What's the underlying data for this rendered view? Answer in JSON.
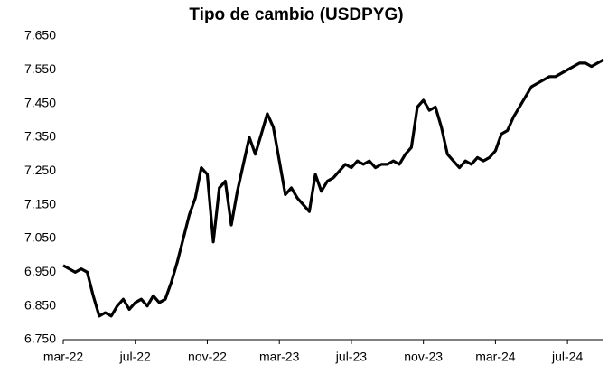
{
  "chart_data": {
    "type": "line",
    "title": "Tipo de cambio (USDPYG)",
    "categories": [
      "mar-22",
      null,
      null,
      null,
      null,
      null,
      null,
      null,
      null,
      null,
      null,
      null,
      "jul-22",
      null,
      null,
      null,
      null,
      null,
      null,
      null,
      null,
      null,
      null,
      null,
      "nov-22",
      null,
      null,
      null,
      null,
      null,
      null,
      null,
      null,
      null,
      null,
      null,
      "mar-23",
      null,
      null,
      null,
      null,
      null,
      null,
      null,
      null,
      null,
      null,
      null,
      "jul-23",
      null,
      null,
      null,
      null,
      null,
      null,
      null,
      null,
      null,
      null,
      null,
      "nov-23",
      null,
      null,
      null,
      null,
      null,
      null,
      null,
      null,
      null,
      null,
      null,
      "mar-24",
      null,
      null,
      null,
      null,
      null,
      null,
      null,
      null,
      null,
      null,
      null,
      "jul-24",
      null,
      null,
      null,
      null,
      null,
      null
    ],
    "series": [
      {
        "color": "#000000",
        "values": [
          6.97,
          6.96,
          6.95,
          6.96,
          6.95,
          6.88,
          6.82,
          6.83,
          6.82,
          6.85,
          6.87,
          6.84,
          6.86,
          6.87,
          6.85,
          6.88,
          6.86,
          6.87,
          6.92,
          6.98,
          7.05,
          7.12,
          7.17,
          7.26,
          7.24,
          7.04,
          7.2,
          7.22,
          7.09,
          7.19,
          7.27,
          7.35,
          7.3,
          7.36,
          7.42,
          7.38,
          7.28,
          7.18,
          7.2,
          7.17,
          7.15,
          7.13,
          7.24,
          7.19,
          7.22,
          7.23,
          7.25,
          7.27,
          7.26,
          7.28,
          7.27,
          7.28,
          7.26,
          7.27,
          7.27,
          7.28,
          7.27,
          7.3,
          7.32,
          7.44,
          7.46,
          7.43,
          7.44,
          7.38,
          7.3,
          7.28,
          7.26,
          7.28,
          7.27,
          7.29,
          7.28,
          7.29,
          7.31,
          7.36,
          7.37,
          7.41,
          7.44,
          7.47,
          7.5,
          7.51,
          7.52,
          7.53,
          7.53,
          7.54,
          7.55,
          7.56,
          7.57,
          7.57,
          7.56,
          7.57,
          7.58
        ]
      }
    ],
    "ylim": [
      6.75,
      7.65
    ],
    "yticks": [
      {
        "value": 6.75,
        "label": "6.750"
      },
      {
        "value": 6.85,
        "label": "6.850"
      },
      {
        "value": 6.95,
        "label": "6.950"
      },
      {
        "value": 7.05,
        "label": "7.050"
      },
      {
        "value": 7.15,
        "label": "7.150"
      },
      {
        "value": 7.25,
        "label": "7.250"
      },
      {
        "value": 7.35,
        "label": "7.350"
      },
      {
        "value": 7.45,
        "label": "7.450"
      },
      {
        "value": 7.55,
        "label": "7.550"
      },
      {
        "value": 7.65,
        "label": "7.650"
      }
    ],
    "grid": false
  }
}
